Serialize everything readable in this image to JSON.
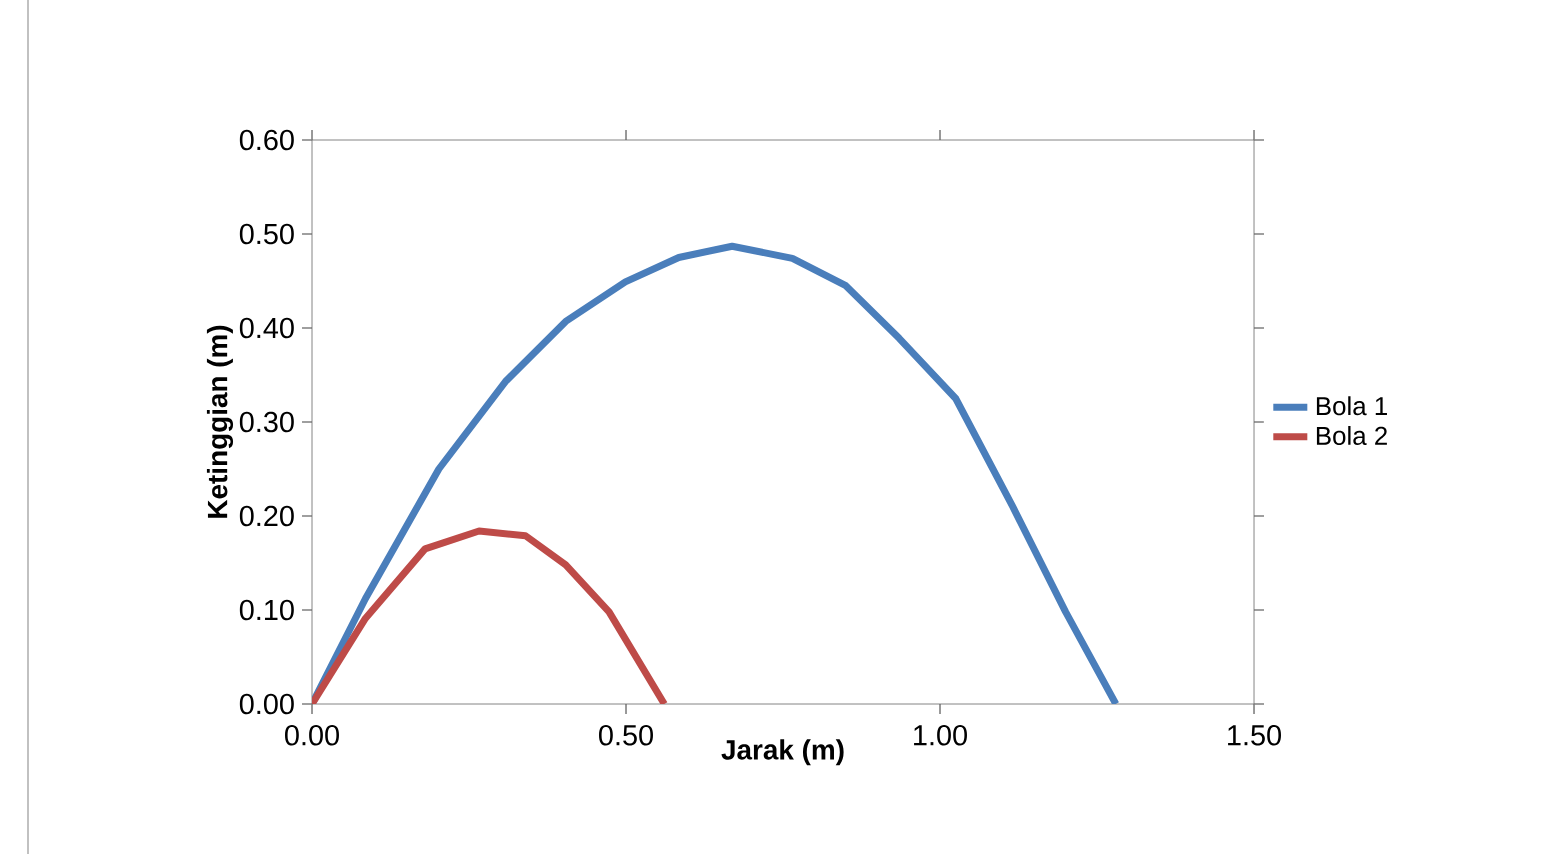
{
  "chart_data": {
    "type": "line",
    "xlabel": "Jarak (m)",
    "ylabel": "Ketinggian (m)",
    "xlim": [
      0,
      1.5
    ],
    "ylim": [
      0,
      0.6
    ],
    "xticks": [
      {
        "value": 0,
        "label": "0.00"
      },
      {
        "value": 0.5,
        "label": "0.50"
      },
      {
        "value": 1,
        "label": "1.00"
      },
      {
        "value": 1.5,
        "label": "1.50"
      }
    ],
    "yticks": [
      {
        "value": 0,
        "label": "0.00"
      },
      {
        "value": 0.1,
        "label": "0.10"
      },
      {
        "value": 0.2,
        "label": "0.20"
      },
      {
        "value": 0.3,
        "label": "0.30"
      },
      {
        "value": 0.4,
        "label": "0.40"
      },
      {
        "value": 0.5,
        "label": "0.50"
      },
      {
        "value": 0.6,
        "label": "0.60"
      }
    ],
    "grid": false,
    "legend": "right",
    "marker": "none",
    "line_style": "solid",
    "series": [
      {
        "name": "Bola 1",
        "color": "#4a7ebb",
        "x": [
          0,
          0.085,
          0.202,
          0.308,
          0.404,
          0.499,
          0.584,
          0.669,
          0.765,
          0.85,
          0.935,
          1.025,
          1.115,
          1.2,
          1.28
        ],
        "values": [
          0,
          0.112,
          0.25,
          0.343,
          0.407,
          0.449,
          0.475,
          0.487,
          0.474,
          0.445,
          0.389,
          0.325,
          0.211,
          0.098,
          0
        ]
      },
      {
        "name": "Bola 2",
        "color": "#be4b48",
        "x": [
          0,
          0.085,
          0.18,
          0.266,
          0.34,
          0.404,
          0.473,
          0.561
        ],
        "values": [
          0,
          0.091,
          0.165,
          0.184,
          0.179,
          0.148,
          0.098,
          0
        ]
      }
    ]
  }
}
